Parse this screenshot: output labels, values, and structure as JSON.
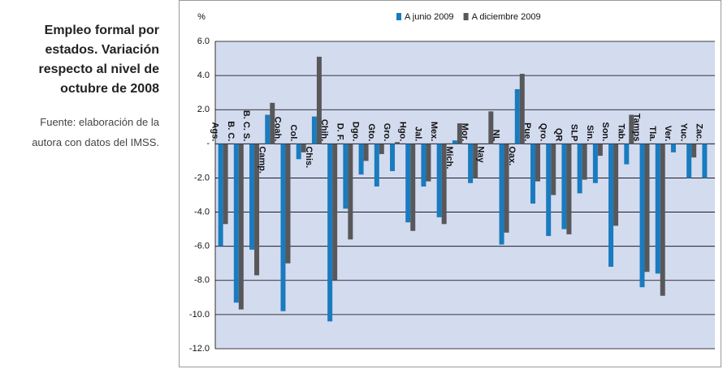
{
  "side_text": {
    "title_lines": [
      "Empleo formal por",
      "estados. Variación",
      "respecto al nivel de",
      "octubre de 2008"
    ],
    "source_lines": [
      "Fuente: elaboración de la",
      "autora con datos del  IMSS."
    ]
  },
  "chart_data": {
    "type": "bar",
    "y_axis_label": "%",
    "categories": [
      "Ags.",
      "B. C.",
      "B. C. S.",
      "Camp.",
      "Coah.",
      "Col.",
      "Chis.",
      "Chih.",
      "D. F.",
      "Dgo.",
      "Gto.",
      "Gro.",
      "Hgo.",
      "Jal.",
      "Mex.",
      "Mich.",
      "Mor.",
      "Nay",
      "NL",
      "Oax.",
      "Pue.",
      "Qro.",
      "QR",
      "SLP",
      "Sin.",
      "Son.",
      "Tab.",
      "Tamps",
      "Tla.",
      "Ver.",
      "Yuc.",
      "Zac."
    ],
    "series": [
      {
        "name": "A junio 2009",
        "color": "#1a7bbf",
        "values": [
          -6.0,
          -9.3,
          -6.2,
          1.7,
          -9.8,
          -0.9,
          1.6,
          -10.4,
          -3.8,
          -1.8,
          -2.5,
          -1.6,
          -4.6,
          -2.5,
          -4.3,
          0.2,
          -2.3,
          null,
          -5.9,
          3.2,
          -3.5,
          -5.4,
          -5.0,
          -2.9,
          -2.3,
          -7.2,
          -1.2,
          -8.4,
          -7.6,
          -0.5,
          -2.0,
          -2.0
        ]
      },
      {
        "name": "A diciembre 2009",
        "color": "#58585a",
        "values": [
          -4.7,
          -9.7,
          -7.7,
          2.4,
          -7.0,
          -0.5,
          5.1,
          -8.0,
          -5.6,
          -1.0,
          -0.6,
          0.1,
          -5.1,
          -2.2,
          -4.7,
          1.2,
          -2.0,
          1.9,
          -5.2,
          4.1,
          -2.2,
          -3.0,
          -5.3,
          -2.1,
          -0.7,
          -4.8,
          1.7,
          -7.5,
          -8.9,
          0.0,
          -0.8,
          null
        ]
      }
    ],
    "ylim": [
      -12,
      6
    ],
    "yticks": [
      {
        "value": 6,
        "label": "6.0"
      },
      {
        "value": 4,
        "label": "4.0"
      },
      {
        "value": 2,
        "label": "2.0"
      },
      {
        "value": 0,
        "label": "-"
      },
      {
        "value": -2,
        "label": "-2.0"
      },
      {
        "value": -4,
        "label": "-4.0"
      },
      {
        "value": -6,
        "label": "-6.0"
      },
      {
        "value": -8,
        "label": "-8.0"
      },
      {
        "value": -10,
        "label": "-10.0"
      },
      {
        "value": -12,
        "label": "-12.0"
      }
    ],
    "grid": true
  }
}
